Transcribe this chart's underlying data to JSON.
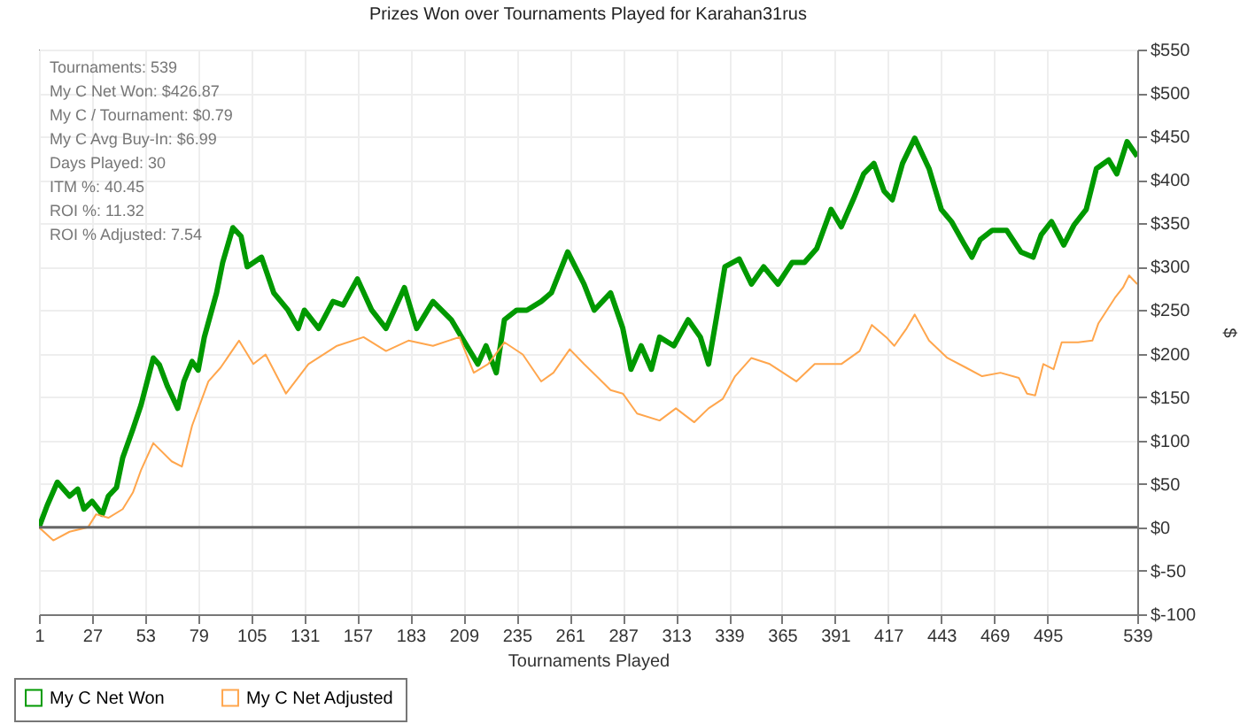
{
  "chart_data": {
    "type": "line",
    "title": "Prizes Won over Tournaments Played for Karahan31rus",
    "xlabel": "Tournaments Played",
    "ylabel": "$",
    "annotations": [
      "Tournaments: 539",
      "My C Net Won: $426.87",
      "My C / Tournament: $0.79",
      "My C Avg Buy-In: $6.99",
      "Days Played: 30",
      "ITM %: 40.45",
      "ROI %: 11.32",
      "ROI % Adjusted: 7.54"
    ],
    "xlim": [
      1,
      539
    ],
    "xticks": [
      1,
      27,
      53,
      79,
      105,
      131,
      157,
      183,
      209,
      235,
      261,
      287,
      313,
      339,
      365,
      391,
      417,
      443,
      469,
      495,
      539
    ],
    "ylim": [
      -100,
      550
    ],
    "yticks": [
      {
        "value": -100,
        "label": "$-100"
      },
      {
        "value": -50,
        "label": "$-50"
      },
      {
        "value": 0,
        "label": "$0"
      },
      {
        "value": 50,
        "label": "$50"
      },
      {
        "value": 100,
        "label": "$100"
      },
      {
        "value": 150,
        "label": "$150"
      },
      {
        "value": 200,
        "label": "$200"
      },
      {
        "value": 250,
        "label": "$250"
      },
      {
        "value": 300,
        "label": "$300"
      },
      {
        "value": 350,
        "label": "$350"
      },
      {
        "value": 400,
        "label": "$400"
      },
      {
        "value": 450,
        "label": "$450"
      },
      {
        "value": 500,
        "label": "$500"
      },
      {
        "value": 550,
        "label": "$550"
      }
    ],
    "grid": true,
    "legend": "bottom left",
    "marker": "none",
    "line_style": "solid",
    "ref_lines": [
      {
        "axis": "y",
        "value": 0,
        "color": "#666666"
      }
    ],
    "series": [
      {
        "name": "My C Net Won",
        "color": "#009900",
        "x": [
          1,
          5,
          10,
          16,
          20,
          23,
          27,
          32,
          35,
          39,
          42,
          47,
          51,
          57,
          60,
          64,
          69,
          72,
          76,
          79,
          82,
          88,
          91,
          96,
          100,
          103,
          110,
          116,
          123,
          128,
          131,
          138,
          145,
          150,
          157,
          164,
          171,
          180,
          186,
          194,
          203,
          209,
          216,
          220,
          225,
          229,
          235,
          240,
          247,
          252,
          260,
          268,
          273,
          281,
          287,
          291,
          296,
          301,
          305,
          312,
          319,
          325,
          329,
          333,
          337,
          344,
          350,
          356,
          363,
          370,
          376,
          382,
          389,
          394,
          400,
          405,
          410,
          415,
          419,
          424,
          430,
          437,
          443,
          448,
          454,
          458,
          462,
          468,
          475,
          482,
          488,
          492,
          497,
          503,
          508,
          514,
          519,
          525,
          529,
          534,
          539
        ],
        "values": [
          0,
          25,
          52,
          36,
          44,
          21,
          30,
          15,
          36,
          46,
          80,
          113,
          141,
          195,
          187,
          162,
          137,
          168,
          191,
          181,
          219,
          270,
          305,
          345,
          335,
          300,
          311,
          270,
          250,
          229,
          250,
          229,
          260,
          256,
          286,
          250,
          229,
          276,
          229,
          260,
          239,
          215,
          188,
          209,
          178,
          239,
          250,
          250,
          260,
          270,
          317,
          280,
          250,
          270,
          229,
          182,
          209,
          182,
          219,
          209,
          239,
          219,
          188,
          243,
          300,
          309,
          280,
          300,
          280,
          305,
          305,
          321,
          366,
          346,
          378,
          407,
          419,
          387,
          377,
          419,
          448,
          413,
          366,
          352,
          327,
          311,
          331,
          342,
          342,
          317,
          311,
          337,
          352,
          325,
          348,
          366,
          413,
          423,
          407,
          444,
          427
        ]
      },
      {
        "name": "My C Net Adjusted",
        "color": "#ffa64d",
        "x": [
          1,
          8,
          16,
          25,
          29,
          35,
          42,
          47,
          51,
          57,
          66,
          71,
          76,
          84,
          90,
          99,
          106,
          112,
          122,
          133,
          147,
          160,
          171,
          182,
          194,
          207,
          214,
          221,
          229,
          238,
          247,
          253,
          261,
          268,
          275,
          281,
          287,
          294,
          305,
          313,
          322,
          329,
          336,
          342,
          350,
          359,
          372,
          381,
          394,
          403,
          409,
          416,
          420,
          426,
          430,
          437,
          446,
          455,
          463,
          472,
          481,
          485,
          489,
          493,
          498,
          502,
          510,
          517,
          520,
          528,
          532,
          535,
          539
        ],
        "values": [
          0,
          -15,
          -5,
          0,
          15,
          11,
          21,
          40,
          66,
          97,
          76,
          70,
          117,
          168,
          184,
          215,
          188,
          199,
          154,
          188,
          209,
          219,
          203,
          215,
          209,
          219,
          178,
          188,
          213,
          199,
          168,
          178,
          205,
          188,
          172,
          158,
          154,
          131,
          123,
          137,
          121,
          137,
          148,
          174,
          195,
          188,
          168,
          188,
          188,
          203,
          233,
          219,
          209,
          229,
          245,
          215,
          195,
          184,
          174,
          178,
          172,
          154,
          152,
          188,
          182,
          213,
          213,
          215,
          235,
          264,
          276,
          290,
          280
        ]
      }
    ]
  }
}
